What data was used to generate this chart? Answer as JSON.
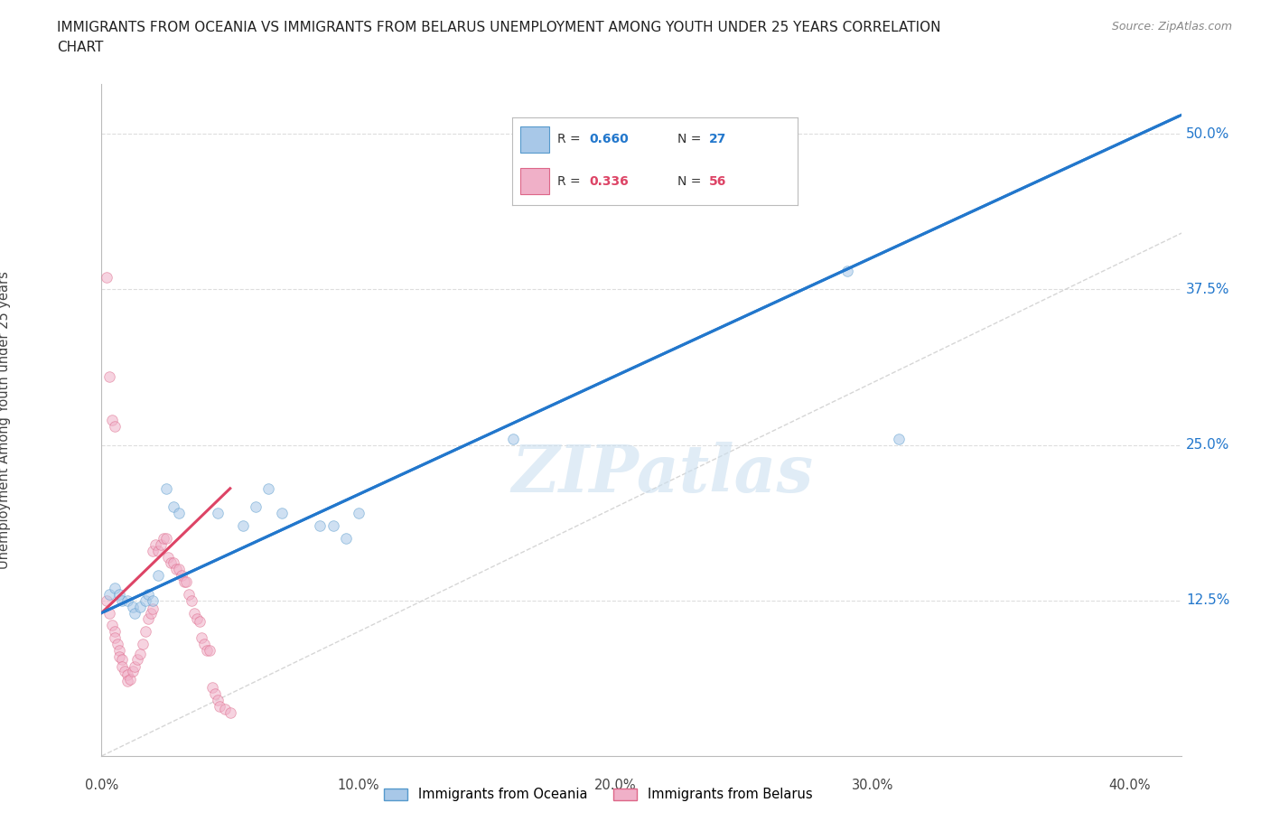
{
  "title": "IMMIGRANTS FROM OCEANIA VS IMMIGRANTS FROM BELARUS UNEMPLOYMENT AMONG YOUTH UNDER 25 YEARS CORRELATION\nCHART",
  "source": "Source: ZipAtlas.com",
  "ylabel": "Unemployment Among Youth under 25 years",
  "ytick_labels": [
    "12.5%",
    "25.0%",
    "37.5%",
    "50.0%"
  ],
  "ytick_values": [
    0.125,
    0.25,
    0.375,
    0.5
  ],
  "xtick_labels": [
    "0.0%",
    "10.0%",
    "20.0%",
    "30.0%",
    "40.0%"
  ],
  "xtick_values": [
    0.0,
    0.1,
    0.2,
    0.3,
    0.4
  ],
  "xlim": [
    0.0,
    0.42
  ],
  "ylim": [
    0.0,
    0.54
  ],
  "background_color": "#ffffff",
  "grid_color": "#dddddd",
  "oceania_color": "#a8c8e8",
  "belarus_color": "#f0b0c8",
  "oceania_edge_color": "#5599cc",
  "belarus_edge_color": "#dd6688",
  "trendline_oceania_color": "#2277cc",
  "trendline_belarus_color": "#dd4466",
  "diagonal_color": "#cccccc",
  "oceania_scatter_x": [
    0.003,
    0.005,
    0.007,
    0.008,
    0.01,
    0.012,
    0.013,
    0.015,
    0.017,
    0.018,
    0.02,
    0.022,
    0.025,
    0.028,
    0.03,
    0.045,
    0.055,
    0.06,
    0.065,
    0.07,
    0.085,
    0.09,
    0.095,
    0.1,
    0.16,
    0.29,
    0.31
  ],
  "oceania_scatter_y": [
    0.13,
    0.135,
    0.13,
    0.125,
    0.125,
    0.12,
    0.115,
    0.12,
    0.125,
    0.13,
    0.125,
    0.145,
    0.215,
    0.2,
    0.195,
    0.195,
    0.185,
    0.2,
    0.215,
    0.195,
    0.185,
    0.185,
    0.175,
    0.195,
    0.255,
    0.39,
    0.255
  ],
  "belarus_scatter_x": [
    0.002,
    0.003,
    0.004,
    0.005,
    0.005,
    0.006,
    0.007,
    0.007,
    0.008,
    0.008,
    0.009,
    0.01,
    0.01,
    0.011,
    0.012,
    0.013,
    0.014,
    0.015,
    0.016,
    0.017,
    0.018,
    0.019,
    0.02,
    0.02,
    0.021,
    0.022,
    0.023,
    0.024,
    0.025,
    0.026,
    0.027,
    0.028,
    0.029,
    0.03,
    0.031,
    0.032,
    0.033,
    0.034,
    0.035,
    0.036,
    0.037,
    0.038,
    0.039,
    0.04,
    0.041,
    0.042,
    0.043,
    0.044,
    0.045,
    0.046,
    0.048,
    0.05,
    0.002,
    0.003,
    0.004,
    0.005
  ],
  "belarus_scatter_y": [
    0.125,
    0.115,
    0.105,
    0.1,
    0.095,
    0.09,
    0.085,
    0.08,
    0.078,
    0.072,
    0.068,
    0.065,
    0.06,
    0.062,
    0.068,
    0.072,
    0.078,
    0.082,
    0.09,
    0.1,
    0.11,
    0.115,
    0.118,
    0.165,
    0.17,
    0.165,
    0.17,
    0.175,
    0.175,
    0.16,
    0.155,
    0.155,
    0.15,
    0.15,
    0.145,
    0.14,
    0.14,
    0.13,
    0.125,
    0.115,
    0.11,
    0.108,
    0.095,
    0.09,
    0.085,
    0.085,
    0.055,
    0.05,
    0.045,
    0.04,
    0.038,
    0.035,
    0.385,
    0.305,
    0.27,
    0.265
  ],
  "watermark_text": "ZIPatlas",
  "watermark_color": "#cce0f0",
  "watermark_alpha": 0.6,
  "marker_size": 70,
  "marker_alpha": 0.55,
  "trendline_oceania_x0": 0.0,
  "trendline_oceania_x1": 0.42,
  "trendline_oceania_y0": 0.115,
  "trendline_oceania_y1": 0.515,
  "trendline_belarus_x0": 0.0,
  "trendline_belarus_x1": 0.05,
  "trendline_belarus_y0": 0.115,
  "trendline_belarus_y1": 0.215,
  "legend_oceania_label": "Immigrants from Oceania",
  "legend_belarus_label": "Immigrants from Belarus",
  "legend_R_oceania": "0.660",
  "legend_N_oceania": "27",
  "legend_R_belarus": "0.336",
  "legend_N_belarus": "56"
}
